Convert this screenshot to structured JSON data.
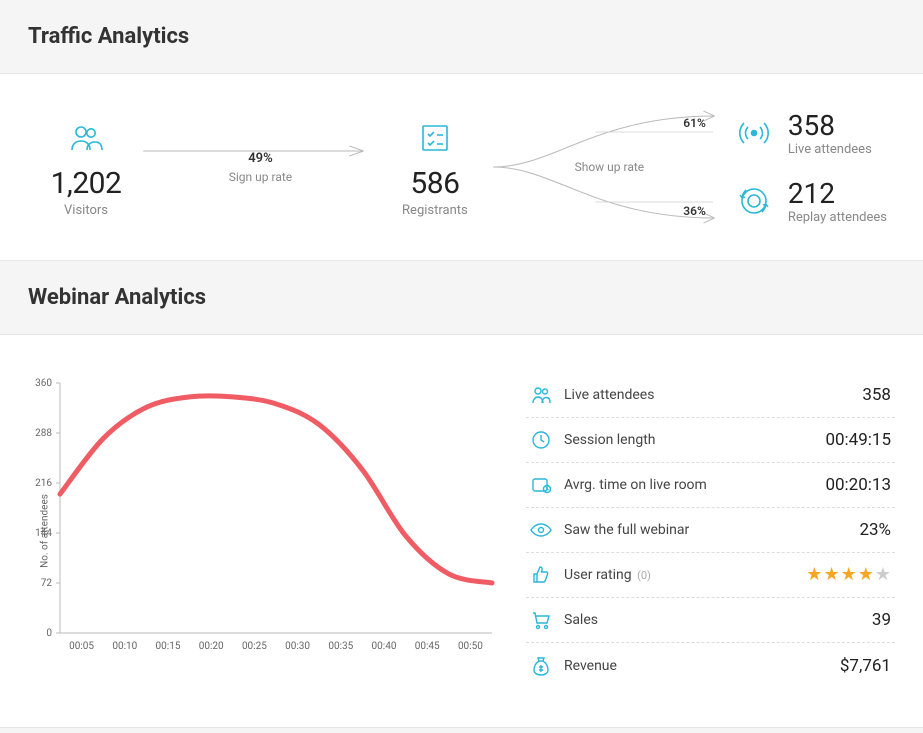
{
  "colors": {
    "accent": "#29b8d8",
    "chart_line": "#f05c64",
    "star_filled": "#f5a623",
    "star_empty": "#cccccc",
    "grid": "#d9d9d9",
    "text_muted": "#888888",
    "panel_bg": "#ffffff",
    "page_bg": "#f5f5f5"
  },
  "traffic": {
    "title": "Traffic Analytics",
    "visitors": {
      "value": "1,202",
      "label": "Visitors"
    },
    "signup": {
      "pct": "49%",
      "label": "Sign up rate"
    },
    "registrants": {
      "value": "586",
      "label": "Registrants"
    },
    "showup": {
      "label": "Show up rate",
      "top_pct": "61%",
      "bottom_pct": "36%"
    },
    "live": {
      "value": "358",
      "label": "Live attendees"
    },
    "replay": {
      "value": "212",
      "label": "Replay attendees"
    }
  },
  "webinar": {
    "title": "Webinar Analytics",
    "chart": {
      "type": "line",
      "ylabel": "No. of attendees",
      "yticks": [
        0,
        72,
        144,
        216,
        288,
        360
      ],
      "ylim": [
        0,
        360
      ],
      "xticks": [
        "00:05",
        "00:10",
        "00:15",
        "00:20",
        "00:25",
        "00:30",
        "00:35",
        "00:40",
        "00:45",
        "00:50"
      ],
      "line_color": "#f05c64",
      "line_width": 5,
      "grid_color": "#e8e8e8",
      "axis_color": "#bbbbbb",
      "tick_fontsize": 10,
      "series": [
        {
          "x": "00:00",
          "y": 200
        },
        {
          "x": "00:05",
          "y": 280
        },
        {
          "x": "00:10",
          "y": 325
        },
        {
          "x": "00:15",
          "y": 340
        },
        {
          "x": "00:20",
          "y": 340
        },
        {
          "x": "00:25",
          "y": 330
        },
        {
          "x": "00:30",
          "y": 300
        },
        {
          "x": "00:35",
          "y": 235
        },
        {
          "x": "00:40",
          "y": 140
        },
        {
          "x": "00:45",
          "y": 85
        },
        {
          "x": "00:50",
          "y": 72
        }
      ]
    },
    "stats": {
      "live_attendees": {
        "label": "Live attendees",
        "value": "358"
      },
      "session_length": {
        "label": "Session length",
        "value": "00:49:15"
      },
      "avg_time": {
        "label": "Avrg. time on live room",
        "value": "00:20:13"
      },
      "full_webinar": {
        "label": "Saw the full webinar",
        "value": "23%"
      },
      "user_rating": {
        "label": "User rating",
        "count_label": "(0)",
        "stars_filled": 4,
        "stars_total": 5
      },
      "sales": {
        "label": "Sales",
        "value": "39"
      },
      "revenue": {
        "label": "Revenue",
        "value": "$7,761"
      }
    }
  }
}
